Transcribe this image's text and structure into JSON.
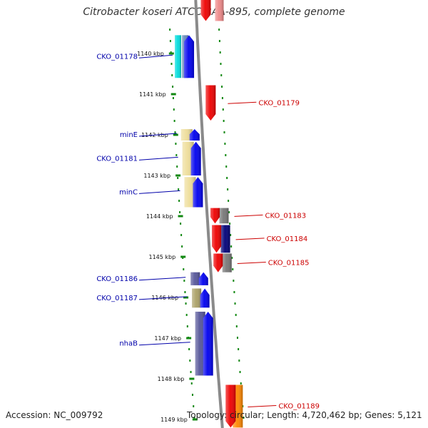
{
  "title": "Citrobacter koseri ATCC BAA-895, complete genome",
  "footer": {
    "accession": "Accession: NC_009792",
    "info": "Topology: circular; Length: 4,720,462 bp; Genes: 5,121"
  },
  "scale": {
    "unit": "kbp",
    "ticks": [
      {
        "kbp": 1140,
        "label": "1140 kbp"
      },
      {
        "kbp": 1141,
        "label": "1141 kbp"
      },
      {
        "kbp": 1142,
        "label": "1142 kbp"
      },
      {
        "kbp": 1143,
        "label": "1143 kbp"
      },
      {
        "kbp": 1144,
        "label": "1144 kbp"
      },
      {
        "kbp": 1145,
        "label": "1145 kbp"
      },
      {
        "kbp": 1146,
        "label": "1146 kbp"
      },
      {
        "kbp": 1147,
        "label": "1147 kbp"
      },
      {
        "kbp": 1148,
        "label": "1148 kbp"
      },
      {
        "kbp": 1149,
        "label": "1149 kbp"
      }
    ]
  },
  "colors": {
    "left_label": "#0000aa",
    "right_label": "#cc0000",
    "backbone": "#8a8a8a",
    "tick_green": "#118811",
    "gene_blue": "#0000ee",
    "gene_red": "#ee0000",
    "gene_orange": "#ff8800",
    "cyan": "#00dddd",
    "steel": "#6688bb",
    "khaki": "#eedd99",
    "olive": "#aaa066",
    "slate": "#555599",
    "gray": "#777777",
    "navy": "#000077",
    "pink": "#ee8888"
  },
  "genes": [
    {
      "name": "",
      "strand": "reverse",
      "start": 1138.3,
      "end": 1139.2,
      "label_side": "none"
    },
    {
      "name": "CKO_01178",
      "strand": "forward",
      "start": 1139.55,
      "end": 1140.6,
      "label_side": "left"
    },
    {
      "name": "CKO_01179",
      "strand": "reverse",
      "start": 1140.78,
      "end": 1141.65,
      "label_side": "right"
    },
    {
      "name": "minE",
      "strand": "forward",
      "start": 1141.86,
      "end": 1142.14,
      "label_side": "left"
    },
    {
      "name": "CKO_01181",
      "strand": "forward",
      "start": 1142.17,
      "end": 1143.0,
      "label_side": "left"
    },
    {
      "name": "minC",
      "strand": "forward",
      "start": 1143.04,
      "end": 1143.78,
      "label_side": "left"
    },
    {
      "name": "CKO_01183",
      "strand": "reverse",
      "start": 1143.8,
      "end": 1144.18,
      "label_side": "right"
    },
    {
      "name": "CKO_01184",
      "strand": "reverse",
      "start": 1144.22,
      "end": 1144.9,
      "label_side": "right"
    },
    {
      "name": "CKO_01185",
      "strand": "reverse",
      "start": 1144.92,
      "end": 1145.38,
      "label_side": "right"
    },
    {
      "name": "CKO_01186",
      "strand": "forward",
      "start": 1145.38,
      "end": 1145.7,
      "label_side": "left"
    },
    {
      "name": "CKO_01187",
      "strand": "forward",
      "start": 1145.78,
      "end": 1146.25,
      "label_side": "left"
    },
    {
      "name": "nhaB",
      "strand": "forward",
      "start": 1146.35,
      "end": 1147.92,
      "label_side": "left"
    },
    {
      "name": "CKO_01189",
      "strand": "reverse",
      "start": 1148.15,
      "end": 1149.2,
      "label_side": "right"
    }
  ]
}
